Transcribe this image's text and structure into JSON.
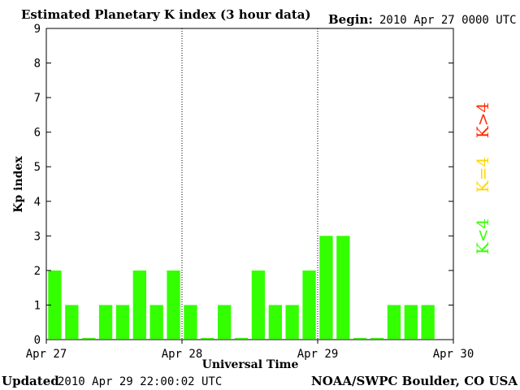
{
  "header": {
    "title": "Estimated Planetary K index (3 hour data)",
    "begin_label": "Begin:",
    "begin_value": "2010 Apr 27 0000 UTC"
  },
  "footer": {
    "updated_label": "Updated",
    "updated_value": "2010 Apr 29 22:00:02 UTC",
    "source": "NOAA/SWPC Boulder, CO USA"
  },
  "legend": [
    {
      "label": "K>4",
      "color": "#ff2a00"
    },
    {
      "label": "K=4",
      "color": "#ffd700"
    },
    {
      "label": "K<4",
      "color": "#33ff00"
    }
  ],
  "colors": {
    "bar_quiet": "#33ff00",
    "bar_moderate": "#ffd700",
    "bar_storm": "#ff2a00"
  },
  "chart_data": {
    "type": "bar",
    "title": "Estimated Planetary K index (3 hour data)",
    "xlabel": "Universal Time",
    "ylabel": "Kp index",
    "ylim": [
      0,
      9
    ],
    "yticks": [
      "0",
      "1",
      "2",
      "3",
      "4",
      "5",
      "6",
      "7",
      "8",
      "9"
    ],
    "xticks": [
      "Apr 27",
      "Apr 28",
      "Apr 29",
      "Apr 30"
    ],
    "grid": false,
    "day_separators": true,
    "interval_hours": 3,
    "categories": [
      "Apr 27 00",
      "Apr 27 03",
      "Apr 27 06",
      "Apr 27 09",
      "Apr 27 12",
      "Apr 27 15",
      "Apr 27 18",
      "Apr 27 21",
      "Apr 28 00",
      "Apr 28 03",
      "Apr 28 06",
      "Apr 28 09",
      "Apr 28 12",
      "Apr 28 15",
      "Apr 28 18",
      "Apr 28 21",
      "Apr 29 00",
      "Apr 29 03",
      "Apr 29 06",
      "Apr 29 09",
      "Apr 29 12",
      "Apr 29 15",
      "Apr 29 18",
      "Apr 29 21"
    ],
    "values": [
      2,
      1,
      0.05,
      1,
      1,
      2,
      1,
      2,
      1,
      0.05,
      1,
      0.05,
      2,
      1,
      1,
      2,
      3,
      3,
      0.05,
      0.05,
      1,
      1,
      1,
      null
    ]
  }
}
